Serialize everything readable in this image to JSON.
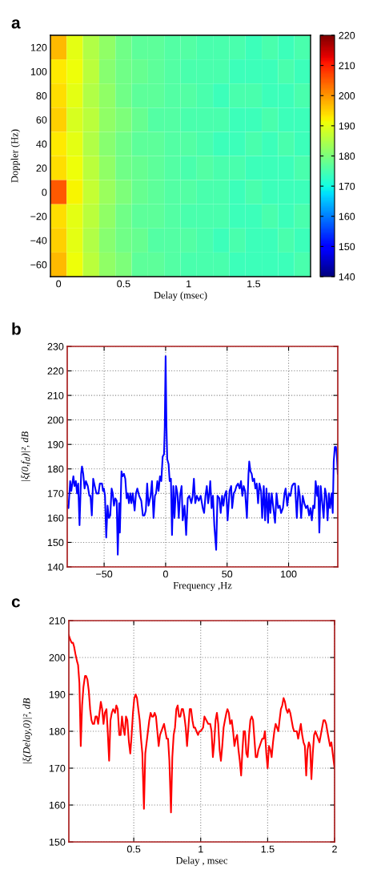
{
  "chart_data": [
    {
      "type": "heatmap",
      "title": "a",
      "xlabel": "Delay (msec)",
      "ylabel": "Doppler (Hz)",
      "categories": [
        "0",
        null,
        null,
        null,
        "0.5",
        null,
        null,
        null,
        "1",
        null,
        null,
        null,
        "1.5",
        null,
        null,
        null
      ],
      "y_categories": [
        "120",
        "100",
        "80",
        "60",
        "40",
        "20",
        "0",
        "−20",
        "−40",
        "−60"
      ],
      "cells": [
        [
          197,
          190,
          185,
          182,
          179,
          177,
          177,
          176,
          176,
          175,
          175,
          175,
          174,
          175,
          174,
          175
        ],
        [
          193,
          191,
          186,
          181,
          179,
          178,
          177,
          176,
          175,
          175,
          175,
          174,
          174,
          174,
          175,
          174
        ],
        [
          194,
          190,
          185,
          182,
          179,
          177,
          177,
          176,
          176,
          175,
          174,
          175,
          175,
          174,
          174,
          175
        ],
        [
          195,
          189,
          186,
          182,
          180,
          178,
          176,
          176,
          175,
          175,
          175,
          174,
          174,
          175,
          174,
          174
        ],
        [
          193,
          190,
          185,
          181,
          179,
          177,
          177,
          176,
          176,
          175,
          174,
          174,
          175,
          174,
          175,
          174
        ],
        [
          194,
          191,
          186,
          182,
          179,
          178,
          177,
          176,
          175,
          176,
          175,
          175,
          174,
          174,
          174,
          175
        ],
        [
          205,
          192,
          187,
          183,
          180,
          178,
          177,
          176,
          176,
          175,
          175,
          174,
          175,
          174,
          174,
          174
        ],
        [
          194,
          190,
          186,
          182,
          179,
          177,
          177,
          176,
          175,
          175,
          175,
          174,
          174,
          175,
          174,
          175
        ],
        [
          195,
          190,
          185,
          181,
          179,
          178,
          176,
          176,
          176,
          175,
          174,
          175,
          174,
          174,
          175,
          174
        ],
        [
          197,
          191,
          186,
          182,
          180,
          177,
          177,
          176,
          175,
          175,
          175,
          174,
          174,
          174,
          174,
          175
        ]
      ],
      "clim": [
        140,
        220
      ],
      "cticks": [
        140,
        150,
        160,
        170,
        180,
        190,
        200,
        210,
        220
      ]
    },
    {
      "type": "line",
      "title": "b",
      "xlabel": "Frequency ,Hz",
      "ylabel": "|ξ(0,f$_{d}$)|², dB",
      "series": [
        {
          "color": "#0000ff",
          "x": [
            -80,
            -79,
            -77.6,
            -76.7,
            -75,
            -74.1,
            -73,
            -72,
            -71.1,
            -70,
            -68.7,
            -68,
            -67,
            -65.9,
            -64.8,
            -63.3,
            -62,
            -61.1,
            -60,
            -58.9,
            -57.6,
            -56.3,
            -54.6,
            -53.5,
            -51.7,
            -50.9,
            -50.2,
            -49.3,
            -48.3,
            -47.2,
            -46.1,
            -45,
            -43.9,
            -43,
            -42,
            -40.9,
            -39.8,
            -38.9,
            -37.8,
            -37.2,
            -35.9,
            -35,
            -33.9,
            -32.8,
            -31.7,
            -30.7,
            -29.8,
            -28.7,
            -27.8,
            -26.7,
            -25.2,
            -24.1,
            -23,
            -21.5,
            -19.8,
            -18.5,
            -17.2,
            -16.1,
            -15,
            -13.9,
            -12.2,
            -11.1,
            -9.8,
            -8.7,
            -7.8,
            -6.7,
            -5.7,
            -4.6,
            -3.5,
            -2.4,
            -1.3,
            -0.7,
            0,
            0.7,
            1.3,
            2.4,
            3.3,
            4.3,
            5.2,
            6.3,
            7.2,
            8.5,
            9.6,
            10.7,
            11.7,
            13,
            13.9,
            15.4,
            16.7,
            18,
            19.3,
            20.9,
            22,
            23,
            24.1,
            25.4,
            27,
            28.5,
            30.2,
            31.3,
            32.4,
            33.5,
            34.6,
            35.7,
            36.3,
            37.4,
            38.5,
            39.6,
            41.1,
            42.2,
            43.7,
            44.8,
            45.9,
            47,
            48,
            49.3,
            50.4,
            52,
            53.3,
            54.1,
            55.4,
            56.5,
            57.6,
            58.9,
            60.2,
            61.3,
            62.4,
            63.5,
            64.6,
            66.1,
            67.4,
            68,
            69,
            70,
            70.9,
            72,
            73,
            74.1,
            75.2,
            76.3,
            77.6,
            78.5,
            79.8,
            80.9,
            82,
            83.3,
            84.1,
            85.2,
            86.3,
            87.6,
            89,
            90.2,
            91.5,
            92.8,
            93.9,
            95.4,
            96.7,
            97.6,
            98.9,
            100.2,
            101.5,
            102.8,
            104.1,
            105.2,
            106.7,
            108,
            109.1,
            110.2,
            111.5,
            112.8,
            114.1,
            115.4,
            116.7,
            117.8,
            118.9,
            120,
            121.1,
            122,
            123.3,
            124.1,
            125,
            126.1,
            127.4,
            128.5,
            129.6,
            130.7,
            131.7,
            132.8,
            133.7,
            135,
            135.9,
            136.7,
            137.6,
            138.5,
            139.3,
            140
          ],
          "values": [
            165,
            164,
            175,
            171,
            177,
            173,
            175,
            170,
            174,
            157,
            178,
            181,
            178,
            172,
            175,
            173,
            169,
            169,
            161,
            176,
            173,
            170,
            170,
            174,
            174,
            171,
            172,
            169,
            152,
            165,
            160,
            161,
            172,
            170,
            165,
            168,
            167,
            145,
            166,
            154,
            179,
            177,
            178,
            176,
            168,
            170,
            166,
            170,
            166,
            170,
            163,
            170,
            172,
            169,
            167,
            161,
            161,
            163,
            174,
            165,
            169,
            175,
            160,
            169,
            170,
            175,
            171,
            177,
            175,
            185,
            186,
            197,
            226,
            197,
            184,
            182,
            175,
            176,
            153,
            173,
            160,
            173,
            170,
            160,
            169,
            173,
            159,
            165,
            153,
            168,
            169,
            166,
            169,
            176,
            166,
            169,
            167,
            169,
            164,
            162,
            169,
            173,
            166,
            171,
            175,
            164,
            169,
            157,
            147,
            169,
            168,
            162,
            169,
            165,
            169,
            171,
            159,
            171,
            173,
            164,
            170,
            171,
            173,
            174,
            172,
            175,
            169,
            173,
            171,
            160,
            178,
            183,
            179,
            178,
            175,
            176,
            172,
            174,
            166,
            174,
            171,
            160,
            173,
            159,
            172,
            158,
            170,
            162,
            170,
            164,
            158,
            170,
            164,
            165,
            162,
            164,
            170,
            172,
            165,
            170,
            169,
            173,
            174,
            174,
            160,
            173,
            169,
            160,
            169,
            166,
            164,
            165,
            161,
            164,
            159,
            165,
            164,
            175,
            169,
            173,
            154,
            173,
            166,
            160,
            172,
            169,
            159,
            170,
            164,
            170,
            162,
            183,
            189,
            189,
            185,
            178
          ]
        }
      ],
      "xlim": [
        -80,
        140
      ],
      "xticks": [
        -50,
        0,
        50,
        100
      ],
      "ylim": [
        140,
        230
      ],
      "yticks": [
        140,
        150,
        160,
        170,
        180,
        190,
        200,
        210,
        220,
        230
      ],
      "grid": true
    },
    {
      "type": "line",
      "title": "c",
      "xlabel": "Delay , msec",
      "ylabel": "|ξ(Delay,0)|², dB",
      "series": [
        {
          "color": "#ff0000",
          "x": [
            0.015,
            0.024,
            0.036,
            0.046,
            0.054,
            0.064,
            0.076,
            0.084,
            0.094,
            0.104,
            0.114,
            0.124,
            0.136,
            0.144,
            0.154,
            0.164,
            0.174,
            0.184,
            0.194,
            0.204,
            0.214,
            0.224,
            0.234,
            0.244,
            0.254,
            0.264,
            0.274,
            0.284,
            0.296,
            0.304,
            0.316,
            0.326,
            0.336,
            0.346,
            0.36,
            0.37,
            0.38,
            0.392,
            0.402,
            0.412,
            0.422,
            0.432,
            0.442,
            0.452,
            0.464,
            0.474,
            0.484,
            0.494,
            0.504,
            0.514,
            0.524,
            0.534,
            0.544,
            0.554,
            0.564,
            0.576,
            0.586,
            0.596,
            0.606,
            0.616,
            0.626,
            0.636,
            0.646,
            0.656,
            0.666,
            0.676,
            0.686,
            0.696,
            0.706,
            0.716,
            0.726,
            0.736,
            0.746,
            0.756,
            0.766,
            0.778,
            0.788,
            0.798,
            0.808,
            0.818,
            0.828,
            0.838,
            0.848,
            0.858,
            0.868,
            0.878,
            0.888,
            0.898,
            0.908,
            0.918,
            0.928,
            0.938,
            0.948,
            0.958,
            0.968,
            0.98,
            0.99,
            1.0,
            1.018,
            1.028,
            1.042,
            1.056,
            1.071,
            1.081,
            1.091,
            1.101,
            1.111,
            1.121,
            1.131,
            1.141,
            1.151,
            1.161,
            1.171,
            1.181,
            1.192,
            1.2,
            1.21,
            1.22,
            1.232,
            1.242,
            1.252,
            1.262,
            1.272,
            1.282,
            1.292,
            1.302,
            1.312,
            1.321,
            1.331,
            1.341,
            1.351,
            1.361,
            1.371,
            1.381,
            1.391,
            1.401,
            1.411,
            1.421,
            1.431,
            1.441,
            1.45,
            1.46,
            1.47,
            1.48,
            1.49,
            1.5,
            1.51,
            1.52,
            1.53,
            1.54,
            1.55,
            1.56,
            1.57,
            1.58,
            1.589,
            1.599,
            1.609,
            1.619,
            1.629,
            1.639,
            1.649,
            1.659,
            1.669,
            1.679,
            1.689,
            1.698,
            1.708,
            1.718,
            1.728,
            1.738,
            1.748,
            1.758,
            1.768,
            1.778,
            1.788,
            1.798,
            1.808,
            1.817,
            1.827,
            1.837,
            1.847,
            1.857,
            1.867,
            1.877,
            1.887,
            1.897,
            1.907,
            1.917,
            1.927,
            1.937,
            1.946,
            1.956,
            1.966,
            1.976,
            1.986,
            2
          ],
          "values": [
            206,
            205,
            204,
            204,
            203,
            201,
            199,
            198,
            193,
            176,
            187,
            192,
            195,
            195,
            194,
            191,
            186,
            183,
            182,
            182,
            184,
            184,
            182,
            185,
            188,
            186,
            182,
            185,
            186,
            181,
            172,
            183,
            185,
            186,
            185,
            187,
            186,
            179,
            179,
            184,
            181,
            179,
            184,
            183,
            177,
            174,
            179,
            185,
            189,
            190,
            189,
            186,
            183,
            178,
            174,
            159,
            174,
            177,
            180,
            183,
            185,
            184,
            184,
            185,
            184,
            180,
            176,
            179,
            180,
            181,
            182,
            180,
            178,
            178,
            172,
            158,
            173,
            179,
            181,
            186,
            187,
            184,
            184,
            186,
            186,
            184,
            181,
            176,
            181,
            186,
            186,
            183,
            181,
            181,
            180,
            179,
            180,
            180,
            181,
            184,
            183,
            182,
            182,
            180,
            173,
            177,
            183,
            185,
            182,
            175,
            172,
            176,
            181,
            183,
            185,
            186,
            185,
            182,
            183,
            180,
            176,
            178,
            179,
            175,
            172,
            168,
            175,
            180,
            180,
            174,
            173,
            179,
            183,
            184,
            183,
            178,
            173,
            173,
            175,
            176,
            177,
            178,
            178,
            180,
            174,
            170,
            176,
            175,
            173,
            177,
            180,
            182,
            181,
            180,
            183,
            186,
            187,
            189,
            188,
            186,
            185,
            186,
            185,
            183,
            181,
            180,
            180,
            180,
            178,
            180,
            182,
            179,
            177,
            176,
            168,
            175,
            177,
            176,
            167,
            174,
            179,
            180,
            179,
            178,
            177,
            179,
            181,
            183,
            183,
            182,
            180,
            178,
            176,
            177,
            174,
            170
          ]
        }
      ],
      "xlim": [
        0.015,
        2
      ],
      "xticks": [
        0.5,
        1,
        1.5,
        2
      ],
      "ylim": [
        150,
        210
      ],
      "yticks": [
        150,
        160,
        170,
        180,
        190,
        200,
        210
      ],
      "grid": true
    }
  ]
}
